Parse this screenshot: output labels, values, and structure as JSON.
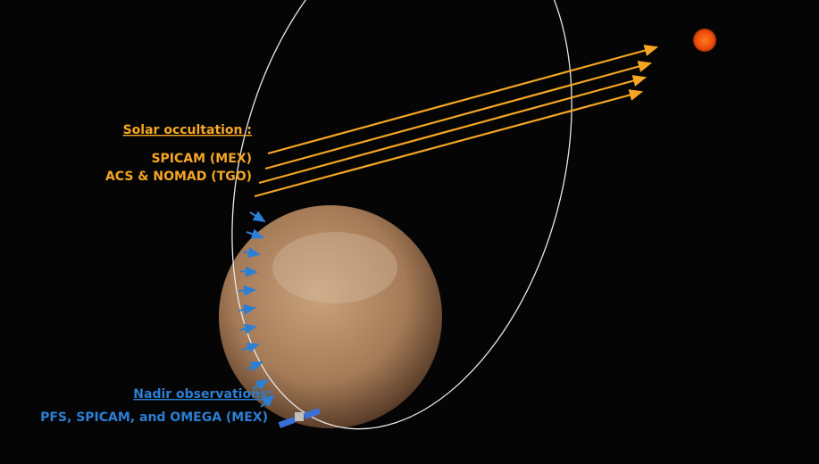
{
  "solar_occultation": {
    "title": "Solar occultation :",
    "instruments": [
      "SPICAM (MEX)",
      "ACS & NOMAD (TGO)"
    ]
  },
  "nadir": {
    "title": "Nadir observations:",
    "instruments": "PFS, SPICAM, and OMEGA (MEX)"
  }
}
